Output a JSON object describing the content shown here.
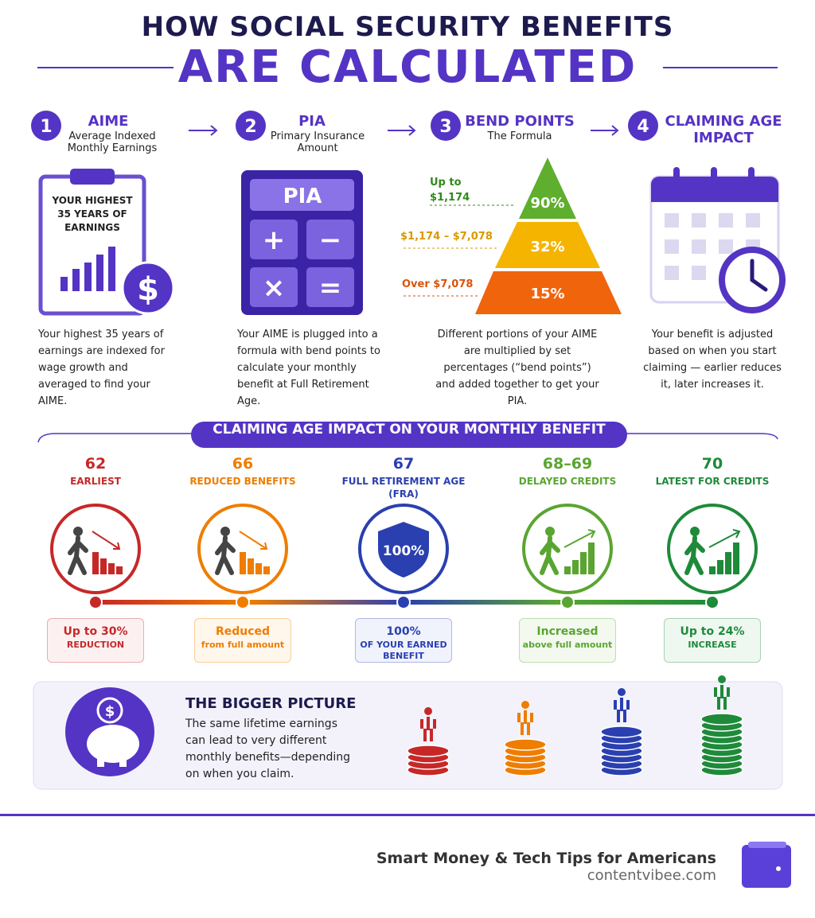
{
  "header": {
    "title_line1": "HOW SOCIAL SECURITY BENEFITS",
    "title_line2": "ARE CALCULATED"
  },
  "steps": [
    {
      "number": "1",
      "title": "AIME",
      "subtitle": "Average Indexed Monthly Earnings",
      "illustration_text": "YOUR HIGHEST 35 YEARS OF EARNINGS",
      "icon_symbol": "$",
      "description": "Your highest 35 years of earnings are indexed for wage growth and averaged to find your AIME."
    },
    {
      "number": "2",
      "title": "PIA",
      "subtitle": "Primary Insurance Amount",
      "calculator_display": "PIA",
      "calculator_keys": [
        "+",
        "−",
        "×",
        "="
      ],
      "description": "Your AIME is plugged into a formula with bend points to calculate your monthly benefit at Full Retirement Age."
    },
    {
      "number": "3",
      "title": "BEND POINTS",
      "subtitle": "The Formula",
      "tiers": [
        {
          "range": "Up to $1,174",
          "percent": "90%"
        },
        {
          "range": "$1,174 – $7,078",
          "percent": "32%"
        },
        {
          "range": "Over $7,078",
          "percent": "15%"
        }
      ],
      "description": "Different portions of your AIME are multiplied by set percentages (“bend points”) and added together to get your PIA."
    },
    {
      "number": "4",
      "title": "CLAIMING AGE IMPACT",
      "description": "Your benefit is adjusted based on when you start claiming — earlier reduces it, later increases it."
    }
  ],
  "claiming": {
    "title": "CLAIMING AGE IMPACT ON YOUR MONTHLY BENEFIT",
    "ages": [
      {
        "age": "62",
        "label": "EARLIEST",
        "badge_main": "Up to 30%",
        "badge_sub": "REDUCTION"
      },
      {
        "age": "66",
        "label": "REDUCED BENEFITS",
        "badge_main": "Reduced",
        "badge_sub": "from full amount"
      },
      {
        "age": "67",
        "label": "FULL RETIREMENT AGE (FRA)",
        "icon_text": "100%",
        "badge_main": "100%",
        "badge_sub": "OF YOUR EARNED BENEFIT"
      },
      {
        "age": "68–69",
        "label": "DELAYED CREDITS",
        "badge_main": "Increased",
        "badge_sub": "above full amount"
      },
      {
        "age": "70",
        "label": "LATEST FOR CREDITS",
        "badge_main": "Up to 24%",
        "badge_sub": "INCREASE"
      }
    ]
  },
  "bigger_picture": {
    "icon_symbol": "$",
    "title": "THE BIGGER PICTURE",
    "text": "The same lifetime earnings can lead to very different monthly benefits—depending on when you claim."
  },
  "footer": {
    "tagline": "Smart Money & Tech Tips for Americans",
    "site": "contentvibee.com"
  }
}
